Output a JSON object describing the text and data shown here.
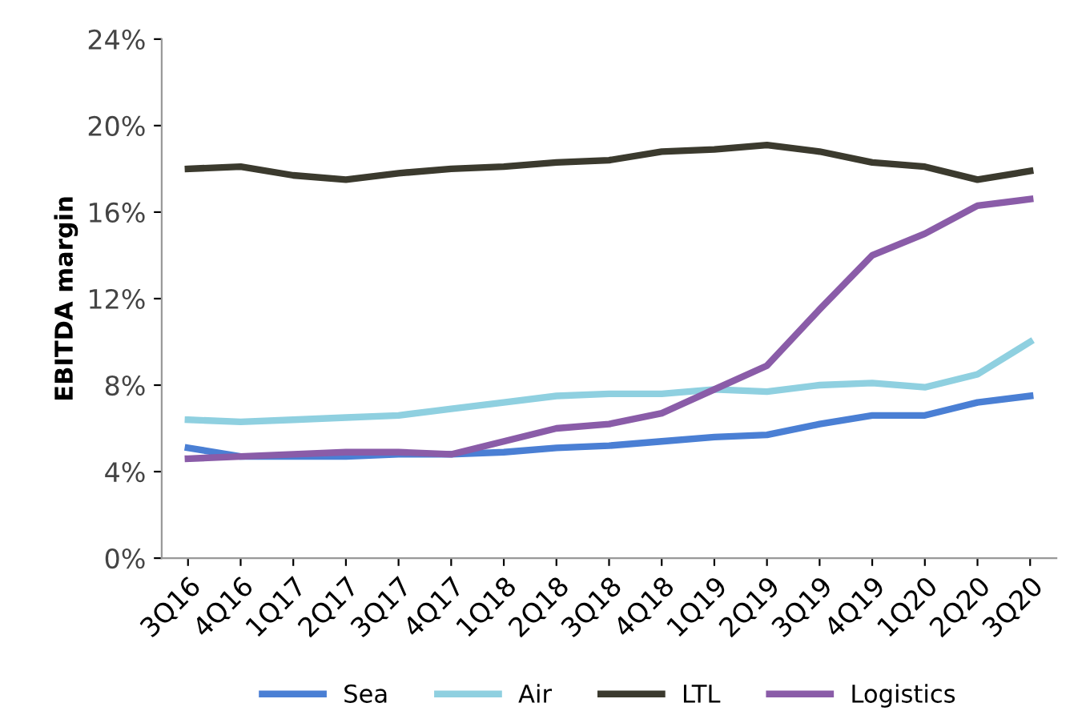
{
  "chart_data": {
    "type": "line",
    "ylabel": "EBITDA margin",
    "categories": [
      "3Q16",
      "4Q16",
      "1Q17",
      "2Q17",
      "3Q17",
      "4Q17",
      "1Q18",
      "2Q18",
      "3Q18",
      "4Q18",
      "1Q19",
      "2Q19",
      "3Q19",
      "4Q19",
      "1Q20",
      "2Q20",
      "3Q20"
    ],
    "series": [
      {
        "name": "Sea",
        "color": "#4a7fd4",
        "values": [
          5.1,
          4.7,
          4.7,
          4.7,
          4.8,
          4.8,
          4.9,
          5.1,
          5.2,
          5.4,
          5.6,
          5.7,
          6.2,
          6.6,
          6.6,
          7.2,
          7.5
        ]
      },
      {
        "name": "Air",
        "color": "#8fd0e0",
        "values": [
          6.4,
          6.3,
          6.4,
          6.5,
          6.6,
          6.9,
          7.2,
          7.5,
          7.6,
          7.6,
          7.8,
          7.7,
          8.0,
          8.1,
          7.9,
          8.5,
          10.0
        ]
      },
      {
        "name": "LTL",
        "color": "#3b3a2e",
        "values": [
          18.0,
          18.1,
          17.7,
          17.5,
          17.8,
          18.0,
          18.1,
          18.3,
          18.4,
          18.8,
          18.9,
          19.1,
          18.8,
          18.3,
          18.1,
          17.5,
          17.9
        ]
      },
      {
        "name": "Logistics",
        "color": "#8a5ca8",
        "values": [
          4.6,
          4.7,
          4.8,
          4.9,
          4.9,
          4.8,
          5.4,
          6.0,
          6.2,
          6.7,
          7.8,
          8.9,
          11.5,
          14.0,
          15.0,
          16.3,
          16.6
        ]
      }
    ],
    "ylim": [
      0,
      24
    ],
    "yticks": [
      {
        "value": 0,
        "label": "0%"
      },
      {
        "value": 4,
        "label": "4%"
      },
      {
        "value": 8,
        "label": "8%"
      },
      {
        "value": 12,
        "label": "12%"
      },
      {
        "value": 16,
        "label": "16%"
      },
      {
        "value": 20,
        "label": "20%"
      },
      {
        "value": 24,
        "label": "24%"
      }
    ],
    "grid": false,
    "legend": "bottom",
    "marker": "none",
    "line_style": "solid"
  }
}
